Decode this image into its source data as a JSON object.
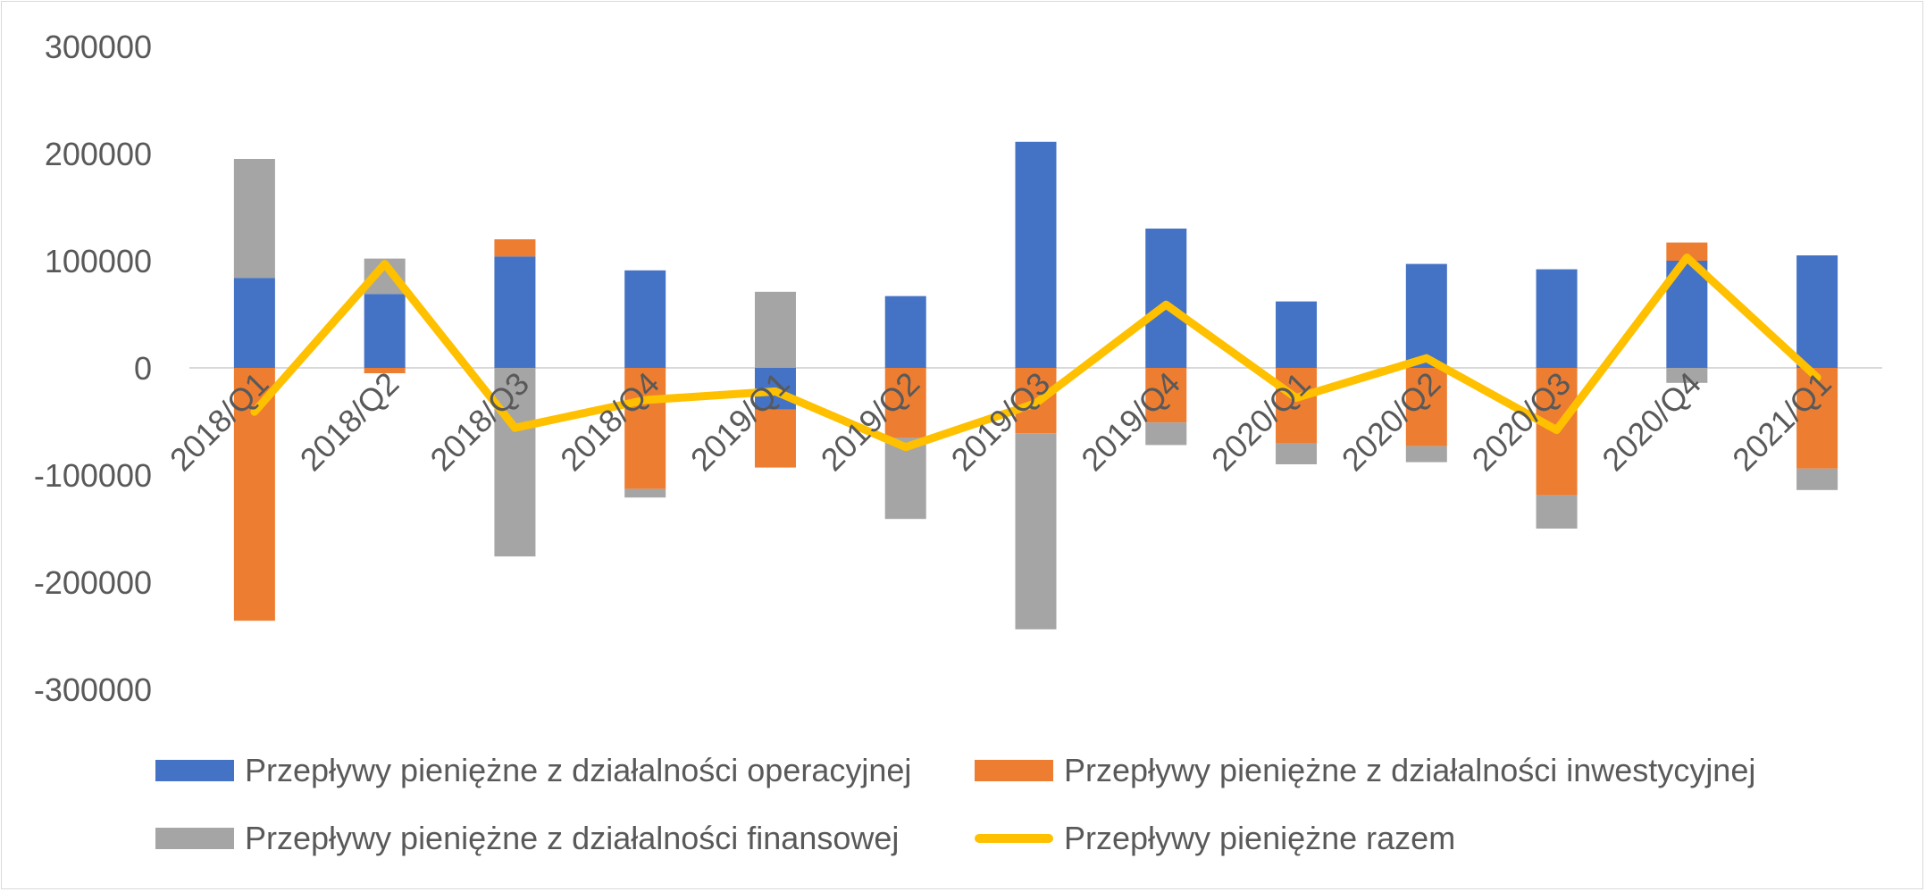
{
  "chart_data": {
    "type": "bar",
    "stacked": true,
    "categories": [
      "2018/Q1",
      "2018/Q2",
      "2018/Q3",
      "2018/Q4",
      "2019/Q1",
      "2019/Q2",
      "2019/Q3",
      "2019/Q4",
      "2020/Q1",
      "2020/Q2",
      "2020/Q3",
      "2020/Q4",
      "2021/Q1"
    ],
    "ylim": [
      -300000,
      300000
    ],
    "yticks": [
      "300000",
      "200000",
      "100000",
      "0",
      "-100000",
      "-200000",
      "-300000"
    ],
    "series": [
      {
        "name": "Przepływy pieniężne z działalności operacyjnej",
        "type": "bar",
        "color": "#4472c4",
        "values": [
          84000,
          69000,
          104000,
          91000,
          -39000,
          67000,
          211000,
          130000,
          62000,
          97000,
          92000,
          100000,
          105000
        ]
      },
      {
        "name": "Przepływy pieniężne z działalności inwestycyjnej",
        "type": "bar",
        "color": "#ed7d31",
        "values": [
          -236000,
          -5000,
          16000,
          -113000,
          -54000,
          -65000,
          -61000,
          -51000,
          -70000,
          -73000,
          -119000,
          17000,
          -94000
        ]
      },
      {
        "name": "Przepływy pieniężne z działalności finansowej",
        "type": "bar",
        "color": "#a5a5a5",
        "values": [
          111000,
          33000,
          -176000,
          -8000,
          71000,
          -76000,
          -183000,
          -21000,
          -20000,
          -15000,
          -31000,
          -14000,
          -20000
        ]
      },
      {
        "name": "Przepływy pieniężne razem",
        "type": "line",
        "color": "#ffc000",
        "values": [
          -41000,
          97000,
          -56000,
          -30000,
          -22000,
          -74000,
          -33000,
          59000,
          -28000,
          9000,
          -58000,
          103000,
          -9000
        ]
      }
    ]
  }
}
